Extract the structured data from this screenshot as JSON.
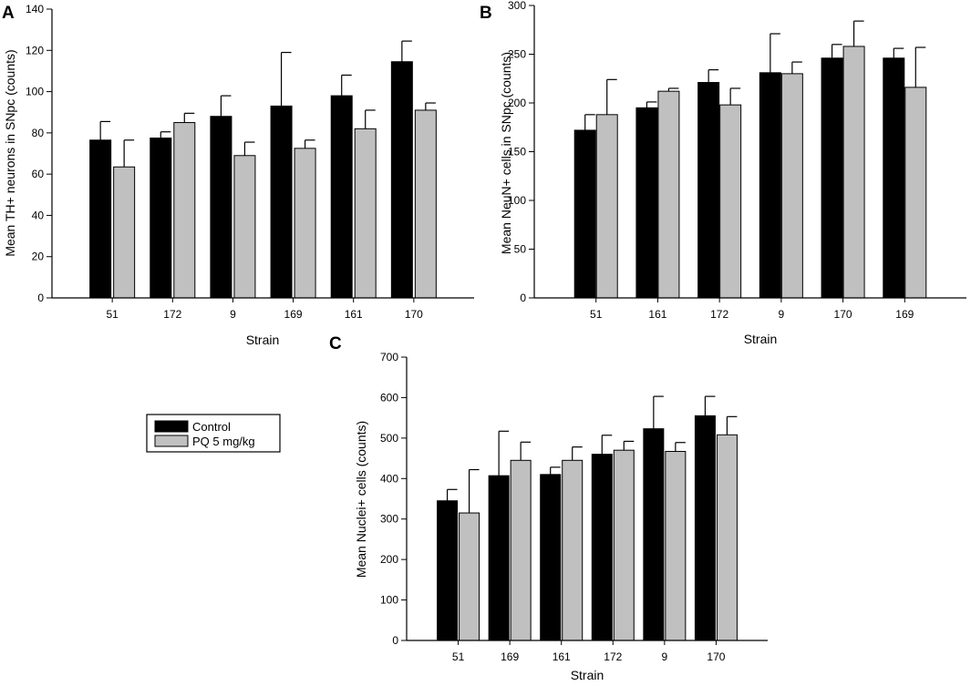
{
  "series_names": [
    "Control",
    "PQ 5 mg/kg"
  ],
  "colors": {
    "control": "#000000",
    "pq": "#c0c0c0",
    "error_bar": "#000000"
  },
  "legend": {
    "items": [
      "Control",
      "PQ 5 mg/kg"
    ]
  },
  "chart_data": [
    {
      "panel": "A",
      "type": "bar",
      "categories": [
        "51",
        "172",
        "9",
        "169",
        "161",
        "170"
      ],
      "series": [
        {
          "name": "Control",
          "values": [
            76.5,
            77.5,
            88,
            93,
            98,
            114.5
          ],
          "errors": [
            9,
            3,
            10,
            26,
            10,
            10
          ]
        },
        {
          "name": "PQ 5 mg/kg",
          "values": [
            63.5,
            85,
            69,
            72.5,
            82,
            91
          ],
          "errors": [
            13,
            4.5,
            6.5,
            4,
            9,
            3.5
          ]
        }
      ],
      "xlabel": "Strain",
      "ylabel": "Mean TH+ neurons in SNpc (counts)",
      "ylim": [
        0,
        140
      ],
      "yticks": [
        0,
        20,
        40,
        60,
        80,
        100,
        120,
        140
      ]
    },
    {
      "panel": "B",
      "type": "bar",
      "categories": [
        "51",
        "161",
        "172",
        "9",
        "170",
        "169"
      ],
      "series": [
        {
          "name": "Control",
          "values": [
            172,
            195,
            221,
            231,
            246,
            246
          ],
          "errors": [
            16,
            6,
            13,
            40,
            14,
            10
          ]
        },
        {
          "name": "PQ 5 mg/kg",
          "values": [
            188,
            212,
            198,
            230,
            258,
            216
          ],
          "errors": [
            36,
            3,
            17,
            12,
            26,
            41
          ]
        }
      ],
      "xlabel": "Strain",
      "ylabel": "Mean NeuN+ cells in SNpc (counts)",
      "ylim": [
        0,
        300
      ],
      "yticks": [
        0,
        50,
        100,
        150,
        200,
        250,
        300
      ]
    },
    {
      "panel": "C",
      "type": "bar",
      "categories": [
        "51",
        "169",
        "161",
        "172",
        "9",
        "170"
      ],
      "series": [
        {
          "name": "Control",
          "values": [
            345,
            407,
            410,
            460,
            523,
            555
          ],
          "errors": [
            28,
            110,
            18,
            47,
            80,
            48
          ]
        },
        {
          "name": "PQ 5 mg/kg",
          "values": [
            315,
            445,
            445,
            470,
            467,
            508
          ],
          "errors": [
            107,
            45,
            33,
            22,
            22,
            45
          ]
        }
      ],
      "xlabel": "Strain",
      "ylabel": "Mean Nuclei+ cells (counts)",
      "ylim": [
        0,
        700
      ],
      "yticks": [
        0,
        100,
        200,
        300,
        400,
        500,
        600,
        700
      ]
    }
  ]
}
